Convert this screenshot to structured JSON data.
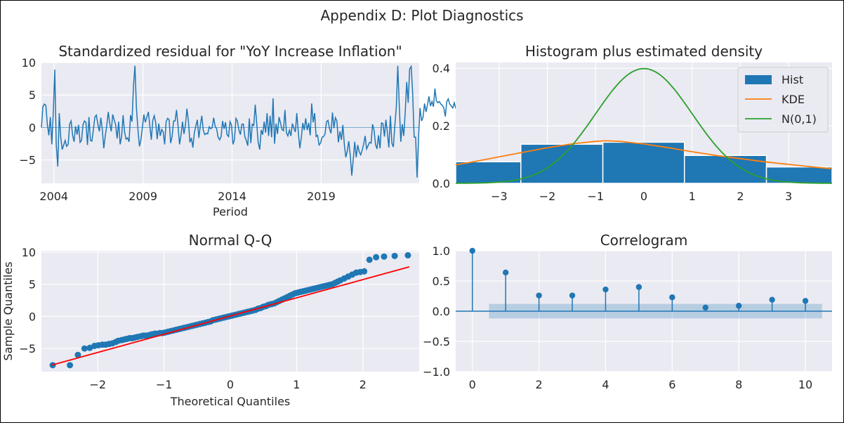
{
  "figure": {
    "suptitle": "Appendix D: Plot Diagnostics"
  },
  "chart_data": [
    {
      "id": "residual",
      "type": "line",
      "title": "Standardized residual for \"YoY Increase Inflation\"",
      "xlabel": "Period",
      "ylabel": "",
      "xlim": [
        2003.3,
        2024.5
      ],
      "ylim": [
        -8.6,
        10.0
      ],
      "xticks": [
        2004,
        2009,
        2014,
        2019
      ],
      "xtick_labels": [
        "2004",
        "2009",
        "2014",
        "2019"
      ],
      "yticks": [
        -5,
        0,
        5,
        10
      ],
      "ytick_labels": [
        "−5",
        "0",
        "5",
        "10"
      ],
      "grid": true,
      "reference_line_y": 0,
      "series": [
        {
          "color": "#1f77b4",
          "start_year": 2003.3,
          "step_years": 0.08333,
          "values": [
            0,
            3.2,
            3.6,
            3.4,
            0.4,
            -1.2,
            1.6,
            -2.6,
            2.2,
            8.9,
            -2.7,
            -6.0,
            2.2,
            -1.5,
            -3.4,
            -2.7,
            -2.0,
            -2.9,
            -2.6,
            0.5,
            1.0,
            -1.2,
            -2.2,
            0.2,
            -1.1,
            0.4,
            -2.3,
            -2.0,
            0.4,
            1.0,
            0.8,
            -2.7,
            1.6,
            -2.0,
            -2.1,
            -0.3,
            1.6,
            1.9,
            0.5,
            -0.6,
            1.5,
            -0.3,
            -3.2,
            -1.3,
            0.3,
            2.4,
            0.6,
            -0.6,
            2.0,
            1.2,
            0.4,
            -1.7,
            0.9,
            -2.6,
            -1.4,
            1.9,
            -0.7,
            -1.8,
            -1.6,
            -2.2,
            1.9,
            0.9,
            6.4,
            9.5,
            3.0,
            -0.4,
            -2.9,
            -1.9,
            0.0,
            2.0,
            0.8,
            1.6,
            2.4,
            0.2,
            -1.9,
            1.1,
            1.8,
            0.7,
            -1.8,
            0.6,
            -1.3,
            -0.3,
            -0.7,
            -2.6,
            0.9,
            1.4,
            1.2,
            -2.4,
            -1.4,
            1.0,
            1.0,
            2.7,
            0.2,
            -2.6,
            -1.2,
            0.9,
            -1.0,
            0.4,
            2.9,
            0.9,
            -2.3,
            -1.6,
            -3.1,
            -0.8,
            0.2,
            1.2,
            -1.6,
            0.3,
            1.8,
            -0.4,
            -1.1,
            -0.9,
            -1.0,
            0.1,
            -0.2,
            0.0,
            1.5,
            0.2,
            -0.2,
            -1.5,
            -1.9,
            -1.4,
            1.0,
            -0.2,
            0.8,
            -1.1,
            -1.4,
            0.9,
            0.4,
            -2.6,
            -1.9,
            1.4,
            1.0,
            -0.4,
            -1.1,
            0.5,
            0.5,
            -1.4,
            -2.0,
            -2.8,
            1.4,
            -2.4,
            0.5,
            0.3,
            3.5,
            0.6,
            -2.3,
            -3.4,
            -0.4,
            -1.1,
            0.9,
            -0.8,
            2.2,
            -1.3,
            1.8,
            -1.5,
            4.5,
            -2.5,
            0.6,
            -1.0,
            1.6,
            0.7,
            -0.3,
            -0.5,
            2.7,
            -0.8,
            -1.3,
            -0.4,
            -1.3,
            0.6,
            -0.1,
            -0.7,
            2.2,
            -0.7,
            -3.2,
            -1.6,
            0.7,
            -0.4,
            1.4,
            -0.4,
            0.7,
            -1.2,
            3.7,
            0.8,
            2.2,
            -1.4,
            -1.2,
            -2.7,
            -2.4,
            -1.5,
            -1.4,
            -1.0,
            0.9,
            1.1,
            -0.2,
            -0.9,
            2.3,
            -0.1,
            1.5,
            1.0,
            -2.3,
            -0.6,
            -1.9,
            0.4,
            -2.6,
            -4.6,
            -3.6,
            -2.1,
            -4.4,
            -7.4,
            -4.9,
            -2.2,
            -4.6,
            -2.7,
            -3.7,
            -4.2,
            -3.5,
            -2.6,
            -1.3,
            -3.3,
            -2.8,
            -2.3,
            -2.4,
            0.5,
            -0.4,
            -2.6,
            -3.3,
            -1.2,
            -3.2,
            0.7,
            0.6,
            -1.4,
            1.2,
            -0.8,
            -3.1,
            1.8,
            -2.4,
            -3.0,
            0.3,
            3.1,
            9.5,
            3.5,
            -2.2,
            0.5,
            -1.3,
            2.3,
            7.0,
            3.8,
            9.0,
            9.4,
            5.3,
            -1.5,
            -1.5,
            -7.7,
            -1.5,
            3.0,
            1.0,
            1.6,
            3.7,
            2.4,
            3.5,
            4.8,
            3.3,
            4.0,
            3.2,
            6.0,
            4.1,
            3.8,
            4.0,
            3.6,
            3.4,
            3.0,
            1.7,
            4.0,
            4.4,
            3.6,
            3.3,
            3.0,
            3.8,
            3.0,
            3.1,
            5.6,
            3.2,
            2.8,
            2.5,
            3.0,
            1.6,
            6.6,
            6.4,
            1.1
          ]
        }
      ]
    },
    {
      "id": "histogram",
      "type": "bar",
      "title": "Histogram plus estimated density",
      "xlabel": "",
      "ylabel": "",
      "xlim": [
        -3.9,
        3.9
      ],
      "ylim": [
        0,
        0.42
      ],
      "xticks": [
        -3,
        -2,
        -1,
        0,
        1,
        2,
        3
      ],
      "xtick_labels": [
        "−3",
        "−2",
        "−1",
        "0",
        "1",
        "2",
        "3"
      ],
      "yticks": [
        0.0,
        0.2,
        0.4
      ],
      "ytick_labels": [
        "0.0",
        "0.2",
        "0.4"
      ],
      "grid": true,
      "legend": {
        "position": "top-right",
        "entries": [
          "Hist",
          "KDE",
          "N(0,1)"
        ]
      },
      "bars": {
        "name": "Hist",
        "color": "#1f77b4",
        "edges": [
          -4.24,
          -2.55,
          -0.85,
          0.84,
          2.54,
          4.24
        ],
        "heights": [
          0.075,
          0.136,
          0.143,
          0.097,
          0.057
        ]
      },
      "kde": {
        "name": "KDE",
        "color": "#ff7f0e",
        "x": [
          -3.9,
          -3.5,
          -3.0,
          -2.5,
          -2.0,
          -1.5,
          -1.0,
          -0.8,
          -0.5,
          0.0,
          0.5,
          1.0,
          1.5,
          2.0,
          2.5,
          3.0,
          3.5,
          3.9
        ],
        "y": [
          0.064,
          0.076,
          0.092,
          0.108,
          0.124,
          0.137,
          0.146,
          0.148,
          0.146,
          0.137,
          0.124,
          0.11,
          0.097,
          0.086,
          0.075,
          0.066,
          0.057,
          0.051
        ]
      },
      "normal": {
        "name": "N(0,1)",
        "color": "#2ca02c",
        "mean": 0,
        "std": 1
      }
    },
    {
      "id": "qq",
      "type": "scatter",
      "title": "Normal Q-Q",
      "xlabel": "Theoretical Quantiles",
      "ylabel": "Sample Quantiles",
      "xlim": [
        -2.85,
        2.85
      ],
      "ylim": [
        -8.6,
        10.2
      ],
      "xticks": [
        -2,
        -1,
        0,
        1,
        2
      ],
      "xtick_labels": [
        "−2",
        "−1",
        "0",
        "1",
        "2"
      ],
      "yticks": [
        -5,
        0,
        5,
        10
      ],
      "ytick_labels": [
        "−5",
        "0",
        "5",
        "10"
      ],
      "grid": true,
      "point_color": "#1f77b4",
      "line_color": "#ff0000",
      "fit_line": {
        "x": [
          -2.7,
          2.7
        ],
        "y": [
          -7.6,
          7.7
        ]
      },
      "points": {
        "x": [
          -2.68,
          -2.42,
          -2.3,
          -2.2,
          -2.12,
          -2.05,
          -1.99,
          -1.93,
          -1.88,
          -1.83,
          -1.78,
          -1.73,
          -1.69,
          -1.64,
          -1.6,
          -1.56,
          -1.52,
          -1.48,
          -1.44,
          -1.4,
          -1.35,
          -1.31,
          -1.27,
          -1.22,
          -1.18,
          -1.14,
          -1.1,
          -1.06,
          -1.02,
          -0.98,
          -0.94,
          -0.9,
          -0.86,
          -0.82,
          -0.78,
          -0.74,
          -0.7,
          -0.66,
          -0.62,
          -0.58,
          -0.54,
          -0.5,
          -0.46,
          -0.42,
          -0.38,
          -0.34,
          -0.3,
          -0.26,
          -0.22,
          -0.18,
          -0.14,
          -0.1,
          -0.06,
          -0.02,
          0.02,
          0.06,
          0.1,
          0.14,
          0.18,
          0.22,
          0.26,
          0.3,
          0.34,
          0.38,
          0.42,
          0.46,
          0.5,
          0.54,
          0.58,
          0.62,
          0.66,
          0.7,
          0.74,
          0.78,
          0.82,
          0.86,
          0.9,
          0.94,
          0.98,
          1.02,
          1.06,
          1.1,
          1.14,
          1.18,
          1.22,
          1.26,
          1.3,
          1.34,
          1.38,
          1.42,
          1.46,
          1.5,
          1.54,
          1.58,
          1.62,
          1.66,
          1.72,
          1.78,
          1.84,
          1.9,
          1.96,
          2.02,
          2.1,
          2.2,
          2.32,
          2.48,
          2.68
        ],
        "y": [
          -7.6,
          -7.6,
          -6.0,
          -5.0,
          -4.9,
          -4.6,
          -4.5,
          -4.4,
          -4.4,
          -4.3,
          -4.2,
          -4.0,
          -3.8,
          -3.7,
          -3.6,
          -3.5,
          -3.4,
          -3.4,
          -3.3,
          -3.2,
          -3.1,
          -3.0,
          -3.0,
          -2.9,
          -2.8,
          -2.7,
          -2.7,
          -2.6,
          -2.6,
          -2.5,
          -2.4,
          -2.3,
          -2.2,
          -2.1,
          -2.0,
          -1.9,
          -1.8,
          -1.7,
          -1.6,
          -1.5,
          -1.4,
          -1.3,
          -1.2,
          -1.1,
          -1.0,
          -0.9,
          -0.8,
          -0.6,
          -0.5,
          -0.4,
          -0.3,
          -0.2,
          -0.1,
          0.0,
          0.1,
          0.2,
          0.3,
          0.4,
          0.5,
          0.6,
          0.7,
          0.8,
          0.9,
          1.0,
          1.2,
          1.3,
          1.5,
          1.6,
          1.8,
          1.9,
          2.0,
          2.2,
          2.4,
          2.6,
          2.8,
          3.0,
          3.2,
          3.4,
          3.6,
          3.7,
          3.8,
          3.9,
          4.0,
          4.1,
          4.2,
          4.3,
          4.4,
          4.5,
          4.6,
          4.7,
          4.8,
          4.9,
          5.0,
          5.2,
          5.4,
          5.6,
          5.9,
          6.2,
          6.5,
          6.8,
          6.9,
          7.0,
          8.8,
          9.2,
          9.3,
          9.4,
          9.5
        ]
      }
    },
    {
      "id": "correlogram",
      "type": "bar",
      "title": "Correlogram",
      "xlabel": "",
      "ylabel": "",
      "xlim": [
        -0.5,
        10.8
      ],
      "ylim": [
        -1.0,
        1.0
      ],
      "xticks": [
        0,
        2,
        4,
        6,
        8,
        10
      ],
      "xtick_labels": [
        "0",
        "2",
        "4",
        "6",
        "8",
        "10"
      ],
      "yticks": [
        -1.0,
        -0.5,
        0.0,
        0.5,
        1.0
      ],
      "ytick_labels": [
        "−1.0",
        "−0.5",
        "0.0",
        "0.5",
        "1.0"
      ],
      "grid": true,
      "lags": [
        0,
        1,
        2,
        3,
        4,
        5,
        6,
        7,
        8,
        9,
        10
      ],
      "values": [
        1.0,
        0.64,
        0.26,
        0.26,
        0.36,
        0.4,
        0.23,
        0.06,
        0.09,
        0.19,
        0.17
      ],
      "confidence_band": {
        "x": [
          0.5,
          10.5
        ],
        "half_width": 0.12
      },
      "color": "#1f77b4"
    }
  ]
}
